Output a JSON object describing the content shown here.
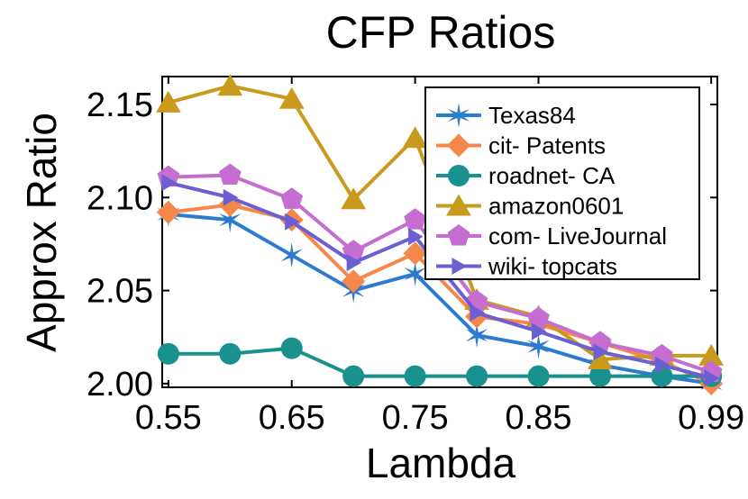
{
  "chart_data": {
    "type": "line",
    "title": "CFP Ratios",
    "xlabel": "Lambda",
    "ylabel": "Approx Ratio",
    "x": [
      0.55,
      0.6,
      0.65,
      0.7,
      0.75,
      0.8,
      0.85,
      0.9,
      0.95,
      0.99
    ],
    "xlim": [
      0.545,
      0.995
    ],
    "ylim": [
      1.998,
      2.165
    ],
    "xticks": [
      0.55,
      0.65,
      0.75,
      0.85,
      0.99
    ],
    "xtick_labels": [
      "0.55",
      "0.65",
      "0.75",
      "0.85",
      "0.99"
    ],
    "yticks": [
      2.0,
      2.05,
      2.1,
      2.15
    ],
    "ytick_labels": [
      "2.00",
      "2.05",
      "2.10",
      "2.15"
    ],
    "legend_position": "top-right",
    "series": [
      {
        "name": "Texas84",
        "marker": "star",
        "color": "#2c7bcf",
        "values": [
          2.091,
          2.088,
          2.069,
          2.05,
          2.059,
          2.026,
          2.02,
          2.01,
          2.004,
          2.0
        ]
      },
      {
        "name": "cit- Patents",
        "marker": "diamond",
        "color": "#f5874a",
        "values": [
          2.092,
          2.096,
          2.088,
          2.055,
          2.07,
          2.036,
          2.032,
          2.022,
          2.012,
          2.0
        ]
      },
      {
        "name": "roadnet- CA",
        "marker": "circle",
        "color": "#19918f",
        "values": [
          2.016,
          2.016,
          2.019,
          2.004,
          2.004,
          2.004,
          2.004,
          2.004,
          2.004,
          2.004
        ]
      },
      {
        "name": "amazon0601",
        "marker": "triangle-up",
        "color": "#c99a1c",
        "values": [
          2.151,
          2.16,
          2.153,
          2.099,
          2.132,
          2.045,
          2.036,
          2.013,
          2.015,
          2.015
        ]
      },
      {
        "name": "com- LiveJournal",
        "marker": "pentagon",
        "color": "#c56dd0",
        "values": [
          2.111,
          2.112,
          2.099,
          2.071,
          2.088,
          2.044,
          2.035,
          2.022,
          2.015,
          2.006
        ]
      },
      {
        "name": "wiki- topcats",
        "marker": "triangle-right",
        "color": "#6b5fd1",
        "values": [
          2.108,
          2.1,
          2.087,
          2.065,
          2.079,
          2.038,
          2.028,
          2.017,
          2.01,
          2.003
        ]
      }
    ]
  }
}
